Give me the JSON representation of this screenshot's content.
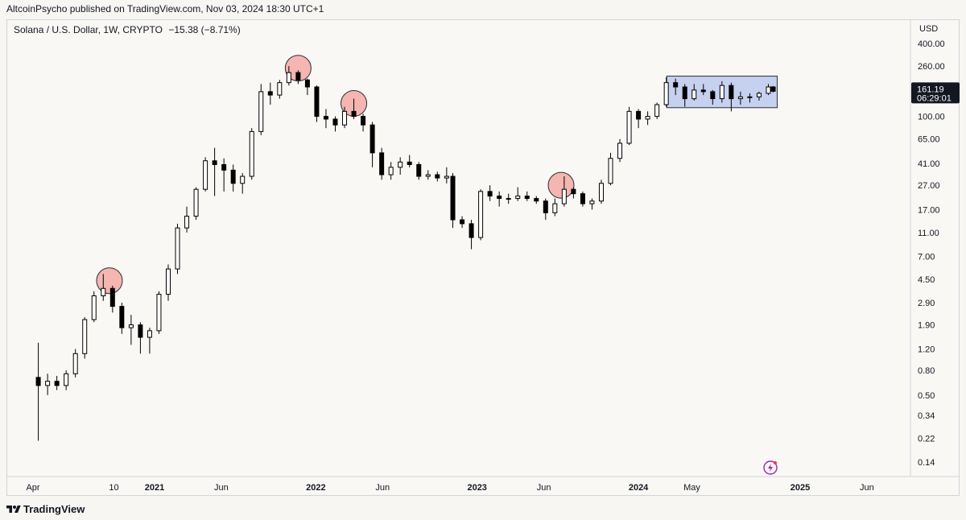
{
  "header": {
    "published": "AltcoinPsycho published on TradingView.com, Nov 03, 2024 18:30 UTC+1"
  },
  "legend": {
    "symbol": "Solana / U.S. Dollar, 1W, CRYPTO",
    "change": "−15.38 (−8.71%)"
  },
  "currency": "USD",
  "price_tag": {
    "price": "161.19",
    "countdown": "06:29:01"
  },
  "footer": {
    "brand": "TradingView"
  },
  "colors": {
    "background": "#f9f8f5",
    "candle": "#000000",
    "candle_up_body": "#ffffff",
    "circle_fill": "#f4a9a3",
    "box_fill": "#c6d0ef",
    "price_tag": "#131722"
  },
  "chart_data": {
    "type": "candlestick",
    "title": "Solana / U.S. Dollar, 1W, CRYPTO",
    "scale": "log",
    "y_range": [
      0.11,
      460
    ],
    "y_ticks": [
      "400.00",
      "260.00",
      "161.19",
      "100.00",
      "65.00",
      "41.00",
      "27.00",
      "17.00",
      "11.00",
      "7.00",
      "4.50",
      "2.90",
      "1.90",
      "1.20",
      "0.80",
      "0.50",
      "0.34",
      "0.22",
      "0.14"
    ],
    "y_tick_values": [
      400,
      260,
      null,
      100,
      65,
      41,
      27,
      17,
      11,
      7,
      4.5,
      2.9,
      1.9,
      1.2,
      0.8,
      0.5,
      0.34,
      0.22,
      0.14
    ],
    "x_ticks": [
      "Apr",
      "10",
      "2021",
      "Jun",
      "2022",
      "Jun",
      "2023",
      "Jun",
      "2024",
      "May",
      "2025",
      "Jun"
    ],
    "x_tick_dates": [
      "2020-04-01",
      "2020-10-01",
      "2021-01-01",
      "2021-06-01",
      "2022-01-01",
      "2022-06-01",
      "2023-01-01",
      "2023-06-01",
      "2024-01-01",
      "2024-05-01",
      "2025-01-01",
      "2025-06-01"
    ],
    "series": [
      {
        "date": "2020-04-13",
        "o": 0.7,
        "h": 1.35,
        "l": 0.21,
        "c": 0.6
      },
      {
        "date": "2020-05-04",
        "o": 0.6,
        "h": 0.75,
        "l": 0.5,
        "c": 0.65
      },
      {
        "date": "2020-05-25",
        "o": 0.65,
        "h": 0.72,
        "l": 0.55,
        "c": 0.6
      },
      {
        "date": "2020-06-15",
        "o": 0.6,
        "h": 0.8,
        "l": 0.55,
        "c": 0.75
      },
      {
        "date": "2020-07-06",
        "o": 0.75,
        "h": 1.2,
        "l": 0.7,
        "c": 1.1
      },
      {
        "date": "2020-07-27",
        "o": 1.1,
        "h": 2.2,
        "l": 1.0,
        "c": 2.1
      },
      {
        "date": "2020-08-17",
        "o": 2.1,
        "h": 3.6,
        "l": 2.0,
        "c": 3.3
      },
      {
        "date": "2020-09-07",
        "o": 3.3,
        "h": 5.0,
        "l": 3.0,
        "c": 3.8
      },
      {
        "date": "2020-09-28",
        "o": 3.8,
        "h": 4.0,
        "l": 2.4,
        "c": 2.7
      },
      {
        "date": "2020-10-19",
        "o": 2.7,
        "h": 2.9,
        "l": 1.6,
        "c": 1.8
      },
      {
        "date": "2020-11-09",
        "o": 1.8,
        "h": 2.3,
        "l": 1.3,
        "c": 1.9
      },
      {
        "date": "2020-11-30",
        "o": 1.9,
        "h": 2.0,
        "l": 1.1,
        "c": 1.5
      },
      {
        "date": "2020-12-21",
        "o": 1.5,
        "h": 1.8,
        "l": 1.1,
        "c": 1.7
      },
      {
        "date": "2021-01-11",
        "o": 1.7,
        "h": 3.6,
        "l": 1.6,
        "c": 3.4
      },
      {
        "date": "2021-02-01",
        "o": 3.4,
        "h": 6.0,
        "l": 3.0,
        "c": 5.5
      },
      {
        "date": "2021-02-22",
        "o": 5.5,
        "h": 13.0,
        "l": 5.0,
        "c": 12.0
      },
      {
        "date": "2021-03-15",
        "o": 12.0,
        "h": 18.0,
        "l": 11.0,
        "c": 15.0
      },
      {
        "date": "2021-04-05",
        "o": 15.0,
        "h": 26.0,
        "l": 14.0,
        "c": 25.0
      },
      {
        "date": "2021-04-26",
        "o": 25.0,
        "h": 46.0,
        "l": 24.0,
        "c": 43.0
      },
      {
        "date": "2021-05-17",
        "o": 43.0,
        "h": 55.0,
        "l": 22.0,
        "c": 40.0
      },
      {
        "date": "2021-06-07",
        "o": 40.0,
        "h": 45.0,
        "l": 24.0,
        "c": 36.0
      },
      {
        "date": "2021-06-28",
        "o": 36.0,
        "h": 40.0,
        "l": 24.0,
        "c": 28.0
      },
      {
        "date": "2021-07-19",
        "o": 28.0,
        "h": 34.0,
        "l": 23.0,
        "c": 32.0
      },
      {
        "date": "2021-08-09",
        "o": 32.0,
        "h": 80.0,
        "l": 30.0,
        "c": 75.0
      },
      {
        "date": "2021-08-30",
        "o": 75.0,
        "h": 185.0,
        "l": 70.0,
        "c": 160.0
      },
      {
        "date": "2021-09-20",
        "o": 160.0,
        "h": 190.0,
        "l": 125.0,
        "c": 150.0
      },
      {
        "date": "2021-10-11",
        "o": 150.0,
        "h": 200.0,
        "l": 140.0,
        "c": 190.0
      },
      {
        "date": "2021-11-01",
        "o": 190.0,
        "h": 260.0,
        "l": 180.0,
        "c": 230.0
      },
      {
        "date": "2021-11-22",
        "o": 230.0,
        "h": 240.0,
        "l": 185.0,
        "c": 200.0
      },
      {
        "date": "2021-12-13",
        "o": 200.0,
        "h": 205.0,
        "l": 150.0,
        "c": 175.0
      },
      {
        "date": "2022-01-03",
        "o": 175.0,
        "h": 180.0,
        "l": 90.0,
        "c": 100.0
      },
      {
        "date": "2022-01-24",
        "o": 100.0,
        "h": 115.0,
        "l": 80.0,
        "c": 95.0
      },
      {
        "date": "2022-02-14",
        "o": 95.0,
        "h": 100.0,
        "l": 75.0,
        "c": 85.0
      },
      {
        "date": "2022-03-07",
        "o": 85.0,
        "h": 120.0,
        "l": 80.0,
        "c": 110.0
      },
      {
        "date": "2022-03-28",
        "o": 110.0,
        "h": 140.0,
        "l": 95.0,
        "c": 100.0
      },
      {
        "date": "2022-04-18",
        "o": 100.0,
        "h": 105.0,
        "l": 75.0,
        "c": 85.0
      },
      {
        "date": "2022-05-09",
        "o": 85.0,
        "h": 90.0,
        "l": 38.0,
        "c": 50.0
      },
      {
        "date": "2022-05-30",
        "o": 50.0,
        "h": 55.0,
        "l": 30.0,
        "c": 33.0
      },
      {
        "date": "2022-06-20",
        "o": 33.0,
        "h": 42.0,
        "l": 30.0,
        "c": 38.0
      },
      {
        "date": "2022-07-11",
        "o": 38.0,
        "h": 46.0,
        "l": 33.0,
        "c": 42.0
      },
      {
        "date": "2022-08-01",
        "o": 42.0,
        "h": 48.0,
        "l": 38.0,
        "c": 40.0
      },
      {
        "date": "2022-08-22",
        "o": 40.0,
        "h": 42.0,
        "l": 30.0,
        "c": 32.0
      },
      {
        "date": "2022-09-12",
        "o": 32.0,
        "h": 36.0,
        "l": 30.0,
        "c": 33.0
      },
      {
        "date": "2022-10-03",
        "o": 33.0,
        "h": 35.0,
        "l": 29.0,
        "c": 31.0
      },
      {
        "date": "2022-10-24",
        "o": 31.0,
        "h": 38.0,
        "l": 28.0,
        "c": 32.0
      },
      {
        "date": "2022-11-07",
        "o": 32.0,
        "h": 34.0,
        "l": 12.0,
        "c": 14.0
      },
      {
        "date": "2022-11-28",
        "o": 14.0,
        "h": 15.0,
        "l": 12.0,
        "c": 13.0
      },
      {
        "date": "2022-12-19",
        "o": 13.0,
        "h": 14.0,
        "l": 8.0,
        "c": 10.0
      },
      {
        "date": "2023-01-09",
        "o": 10.0,
        "h": 25.0,
        "l": 9.5,
        "c": 24.0
      },
      {
        "date": "2023-01-30",
        "o": 24.0,
        "h": 27.0,
        "l": 20.0,
        "c": 22.0
      },
      {
        "date": "2023-02-20",
        "o": 22.0,
        "h": 24.0,
        "l": 18.0,
        "c": 21.0
      },
      {
        "date": "2023-03-13",
        "o": 21.0,
        "h": 23.0,
        "l": 19.0,
        "c": 21.0
      },
      {
        "date": "2023-04-03",
        "o": 21.0,
        "h": 26.0,
        "l": 20.0,
        "c": 22.0
      },
      {
        "date": "2023-04-24",
        "o": 22.0,
        "h": 24.0,
        "l": 20.0,
        "c": 21.0
      },
      {
        "date": "2023-05-15",
        "o": 21.0,
        "h": 22.0,
        "l": 19.0,
        "c": 20.0
      },
      {
        "date": "2023-06-05",
        "o": 20.0,
        "h": 21.0,
        "l": 14.0,
        "c": 16.0
      },
      {
        "date": "2023-06-26",
        "o": 16.0,
        "h": 21.0,
        "l": 15.0,
        "c": 19.0
      },
      {
        "date": "2023-07-17",
        "o": 19.0,
        "h": 32.0,
        "l": 18.0,
        "c": 25.0
      },
      {
        "date": "2023-08-07",
        "o": 25.0,
        "h": 26.0,
        "l": 21.0,
        "c": 23.0
      },
      {
        "date": "2023-08-28",
        "o": 23.0,
        "h": 24.0,
        "l": 18.0,
        "c": 19.0
      },
      {
        "date": "2023-09-18",
        "o": 19.0,
        "h": 21.0,
        "l": 17.0,
        "c": 20.0
      },
      {
        "date": "2023-10-09",
        "o": 20.0,
        "h": 30.0,
        "l": 19.0,
        "c": 28.0
      },
      {
        "date": "2023-10-30",
        "o": 28.0,
        "h": 50.0,
        "l": 27.0,
        "c": 45.0
      },
      {
        "date": "2023-11-20",
        "o": 45.0,
        "h": 65.0,
        "l": 42.0,
        "c": 60.0
      },
      {
        "date": "2023-12-11",
        "o": 60.0,
        "h": 120.0,
        "l": 58.0,
        "c": 110.0
      },
      {
        "date": "2024-01-01",
        "o": 110.0,
        "h": 115.0,
        "l": 80.0,
        "c": 95.0
      },
      {
        "date": "2024-01-22",
        "o": 95.0,
        "h": 110.0,
        "l": 85.0,
        "c": 100.0
      },
      {
        "date": "2024-02-12",
        "o": 100.0,
        "h": 130.0,
        "l": 95.0,
        "c": 125.0
      },
      {
        "date": "2024-03-04",
        "o": 125.0,
        "h": 210.0,
        "l": 120.0,
        "c": 190.0
      },
      {
        "date": "2024-03-25",
        "o": 190.0,
        "h": 205.0,
        "l": 150.0,
        "c": 175.0
      },
      {
        "date": "2024-04-15",
        "o": 175.0,
        "h": 185.0,
        "l": 120.0,
        "c": 140.0
      },
      {
        "date": "2024-05-06",
        "o": 140.0,
        "h": 185.0,
        "l": 135.0,
        "c": 165.0
      },
      {
        "date": "2024-05-27",
        "o": 165.0,
        "h": 185.0,
        "l": 150.0,
        "c": 160.0
      },
      {
        "date": "2024-06-17",
        "o": 160.0,
        "h": 165.0,
        "l": 125.0,
        "c": 140.0
      },
      {
        "date": "2024-07-08",
        "o": 140.0,
        "h": 195.0,
        "l": 130.0,
        "c": 180.0
      },
      {
        "date": "2024-07-29",
        "o": 180.0,
        "h": 190.0,
        "l": 110.0,
        "c": 140.0
      },
      {
        "date": "2024-08-19",
        "o": 140.0,
        "h": 160.0,
        "l": 125.0,
        "c": 145.0
      },
      {
        "date": "2024-09-09",
        "o": 145.0,
        "h": 155.0,
        "l": 130.0,
        "c": 145.0
      },
      {
        "date": "2024-09-30",
        "o": 145.0,
        "h": 160.0,
        "l": 135.0,
        "c": 155.0
      },
      {
        "date": "2024-10-21",
        "o": 155.0,
        "h": 185.0,
        "l": 150.0,
        "c": 175.0
      },
      {
        "date": "2024-11-01",
        "o": 175.0,
        "h": 178.0,
        "l": 158.0,
        "c": 161.19
      }
    ],
    "circles": [
      {
        "date": "2020-09-21",
        "price": 4.4
      },
      {
        "date": "2021-11-22",
        "price": 250
      },
      {
        "date": "2022-03-28",
        "price": 128
      },
      {
        "date": "2023-07-10",
        "price": 27
      }
    ],
    "range_box": {
      "from": "2024-03-05",
      "to": "2024-11-10",
      "top": 215,
      "bottom": 118
    }
  }
}
